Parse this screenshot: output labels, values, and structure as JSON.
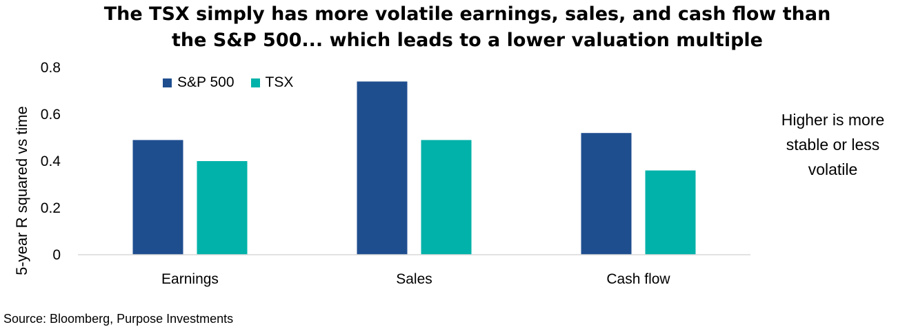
{
  "colors": {
    "sp500": "#1f4e8f",
    "tsx": "#00b2a9",
    "axis": "#d9d9d9"
  },
  "annotation": {
    "lines": [
      "Higher is more",
      "stable or less",
      "volatile"
    ]
  },
  "source": "Source: Bloomberg, Purpose Investments",
  "chart_data": {
    "type": "bar",
    "title_lines": [
      "The TSX simply has more volatile earnings, sales, and cash flow than",
      "the S&P 500... which leads to a lower valuation multiple"
    ],
    "xlabel": "",
    "ylabel": "5-year R squared vs time",
    "categories": [
      "Earnings",
      "Sales",
      "Cash flow"
    ],
    "series": [
      {
        "name": "S&P 500",
        "values": [
          0.49,
          0.74,
          0.52
        ]
      },
      {
        "name": "TSX",
        "values": [
          0.4,
          0.49,
          0.36
        ]
      }
    ],
    "ylim": [
      0,
      0.8
    ],
    "yticks": [
      "0",
      "0.2",
      "0.4",
      "0.6",
      "0.8"
    ],
    "grid": false,
    "legend": "top-left"
  }
}
